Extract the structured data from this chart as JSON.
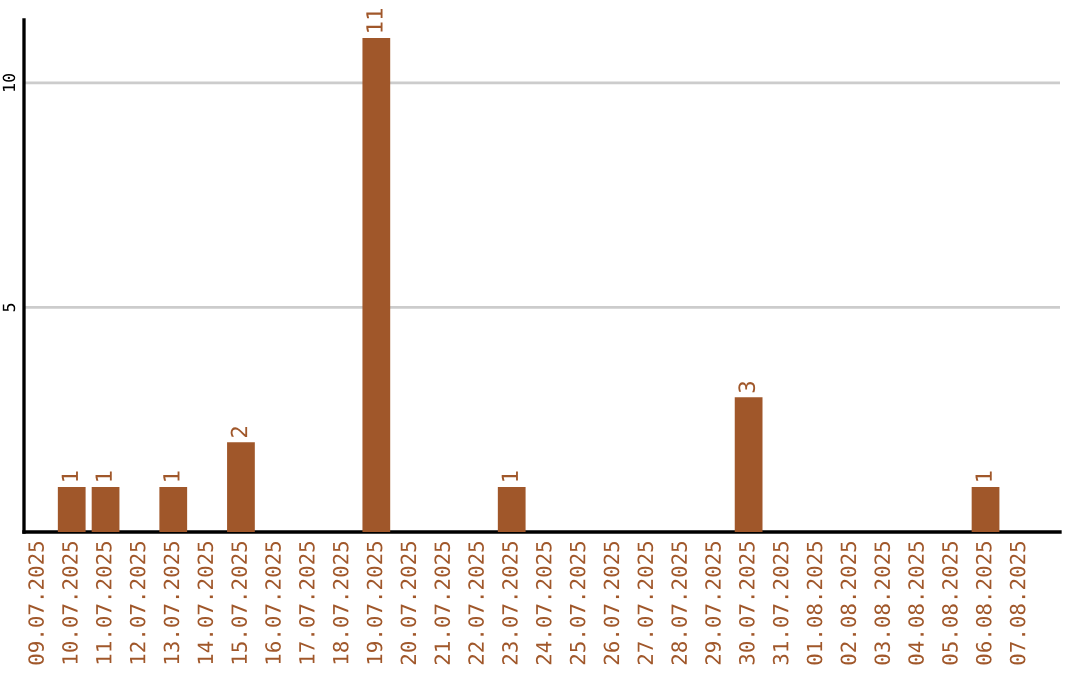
{
  "chart_data": {
    "type": "bar",
    "categories": [
      "09.07.2025",
      "10.07.2025",
      "11.07.2025",
      "12.07.2025",
      "13.07.2025",
      "14.07.2025",
      "15.07.2025",
      "16.07.2025",
      "17.07.2025",
      "18.07.2025",
      "19.07.2025",
      "20.07.2025",
      "21.07.2025",
      "22.07.2025",
      "23.07.2025",
      "24.07.2025",
      "25.07.2025",
      "26.07.2025",
      "27.07.2025",
      "28.07.2025",
      "29.07.2025",
      "30.07.2025",
      "31.07.2025",
      "01.08.2025",
      "02.08.2025",
      "03.08.2025",
      "04.08.2025",
      "05.08.2025",
      "06.08.2025",
      "07.08.2025"
    ],
    "values": [
      0,
      1,
      1,
      0,
      1,
      0,
      2,
      0,
      0,
      0,
      11,
      0,
      0,
      0,
      1,
      0,
      0,
      0,
      0,
      0,
      0,
      3,
      0,
      0,
      0,
      0,
      0,
      0,
      1,
      0
    ],
    "value_labels": [
      null,
      "1",
      "1",
      null,
      "1",
      null,
      "2",
      null,
      null,
      null,
      "11",
      null,
      null,
      null,
      "1",
      null,
      null,
      null,
      null,
      null,
      null,
      "3",
      null,
      null,
      null,
      null,
      null,
      null,
      "1",
      null
    ],
    "color": "#a0572a",
    "ylim": [
      0,
      11.4
    ],
    "yticks": [
      5,
      10
    ],
    "grid": "y"
  }
}
